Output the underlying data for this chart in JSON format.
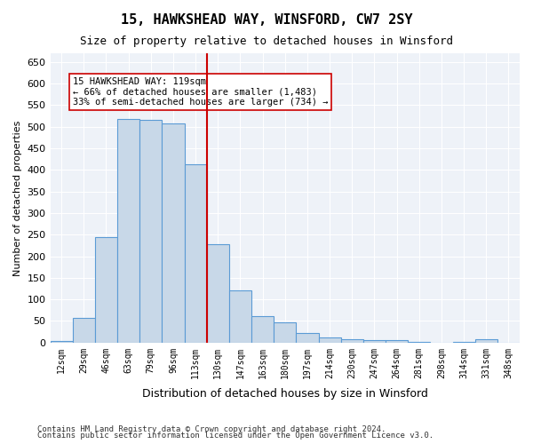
{
  "title": "15, HAWKSHEAD WAY, WINSFORD, CW7 2SY",
  "subtitle": "Size of property relative to detached houses in Winsford",
  "xlabel": "Distribution of detached houses by size in Winsford",
  "ylabel": "Number of detached properties",
  "categories": [
    "12sqm",
    "29sqm",
    "46sqm",
    "63sqm",
    "79sqm",
    "96sqm",
    "113sqm",
    "130sqm",
    "147sqm",
    "163sqm",
    "180sqm",
    "197sqm",
    "214sqm",
    "230sqm",
    "247sqm",
    "264sqm",
    "281sqm",
    "298sqm",
    "314sqm",
    "331sqm",
    "348sqm"
  ],
  "values": [
    3,
    58,
    245,
    518,
    516,
    508,
    412,
    228,
    120,
    62,
    47,
    22,
    11,
    8,
    6,
    6,
    2,
    0,
    1,
    8,
    0
  ],
  "bar_color": "#c8d8e8",
  "bar_edge_color": "#5b9bd5",
  "vline_x": 7,
  "vline_color": "#cc0000",
  "annotation_text": "15 HAWKSHEAD WAY: 119sqm\n← 66% of detached houses are smaller (1,483)\n33% of semi-detached houses are larger (734) →",
  "annotation_box_color": "#ffffff",
  "annotation_box_edge": "#cc0000",
  "ylim": [
    0,
    670
  ],
  "yticks": [
    0,
    50,
    100,
    150,
    200,
    250,
    300,
    350,
    400,
    450,
    500,
    550,
    600,
    650
  ],
  "bg_color": "#eef2f8",
  "footer1": "Contains HM Land Registry data © Crown copyright and database right 2024.",
  "footer2": "Contains public sector information licensed under the Open Government Licence v3.0."
}
